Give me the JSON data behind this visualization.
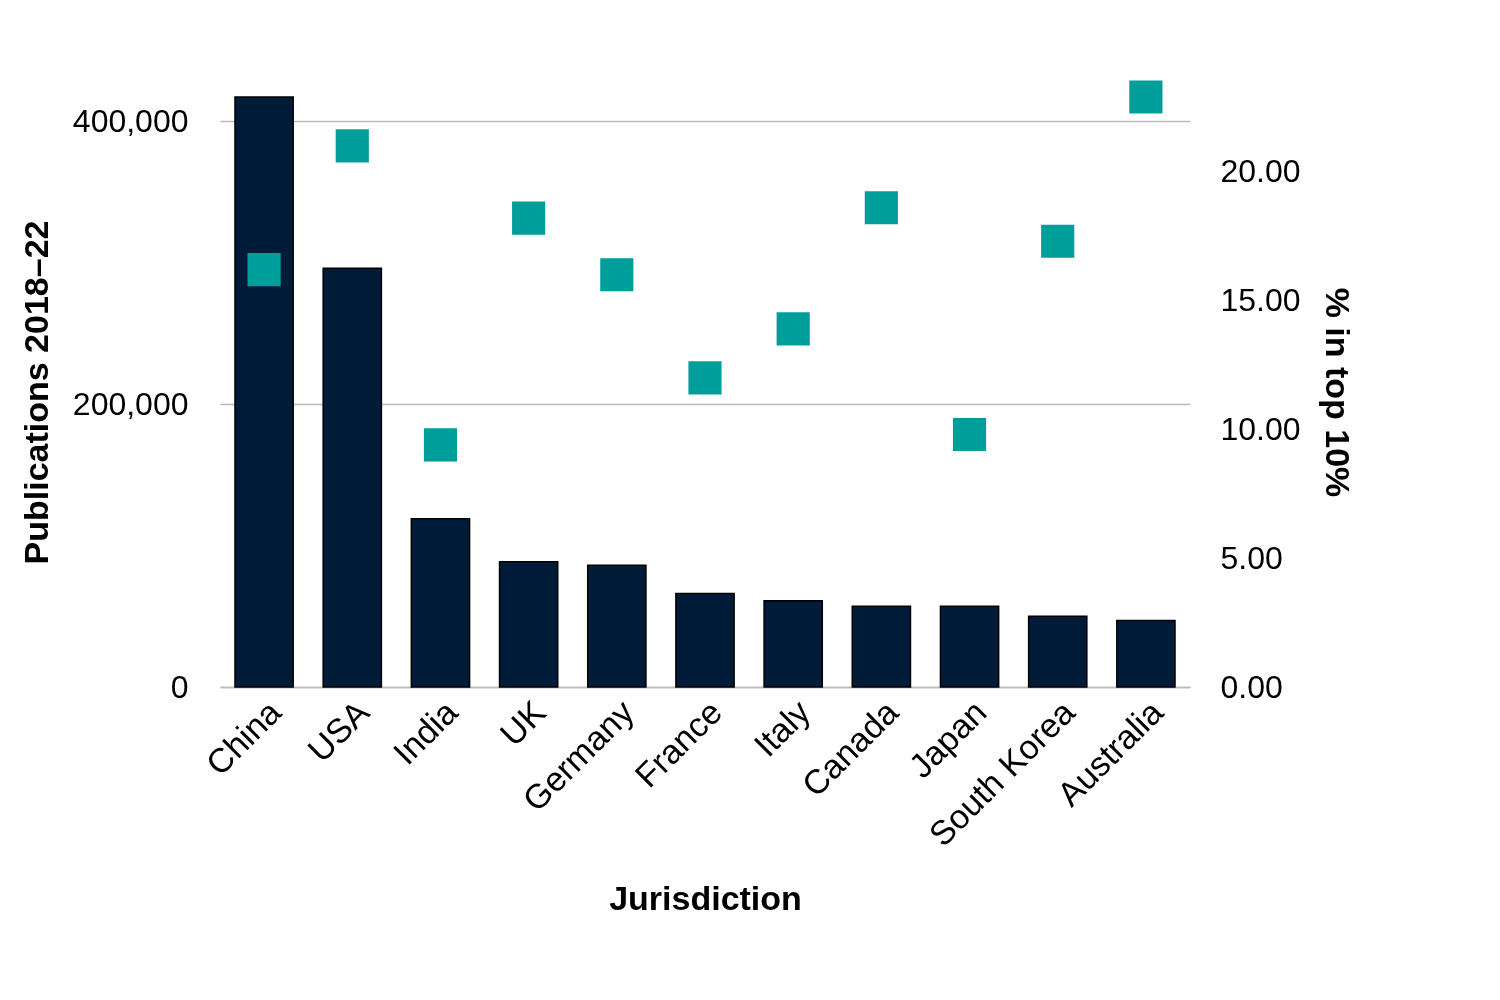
{
  "chart_data": {
    "type": "bar",
    "xlabel": "Jurisdiction",
    "ylabel": "Publications 2018–22",
    "y2label": "% in top 10%",
    "categories": [
      "China",
      "USA",
      "India",
      "UK",
      "Germany",
      "France",
      "Italy",
      "Canada",
      "Japan",
      "South Korea",
      "Australia"
    ],
    "series": [
      {
        "color": "#001c38",
        "values": [
          417000,
          296000,
          119000,
          88600,
          86000,
          66000,
          61000,
          57000,
          57000,
          50000,
          47000
        ]
      },
      {
        "type": "scatter",
        "axis": "y2",
        "color": "#009e9a",
        "values": [
          16.2,
          21.0,
          9.4,
          18.2,
          16.0,
          12.0,
          13.9,
          18.6,
          9.8,
          17.3,
          22.9
        ]
      }
    ],
    "ylim": [
      0,
      417000
    ],
    "yticks": [
      {
        "value": 0,
        "label": "0"
      },
      {
        "value": 200000,
        "label": "200,000"
      },
      {
        "value": 400000,
        "label": "400,000"
      }
    ],
    "y2lim": [
      0,
      22.9
    ],
    "y2ticks": [
      {
        "value": 0,
        "label": "0.00"
      },
      {
        "value": 5,
        "label": "5.00"
      },
      {
        "value": 10,
        "label": "10.00"
      },
      {
        "value": 15,
        "label": "15.00"
      },
      {
        "value": 20,
        "label": "20.00"
      }
    ],
    "grid": "y",
    "marker": "square",
    "legend": false
  }
}
